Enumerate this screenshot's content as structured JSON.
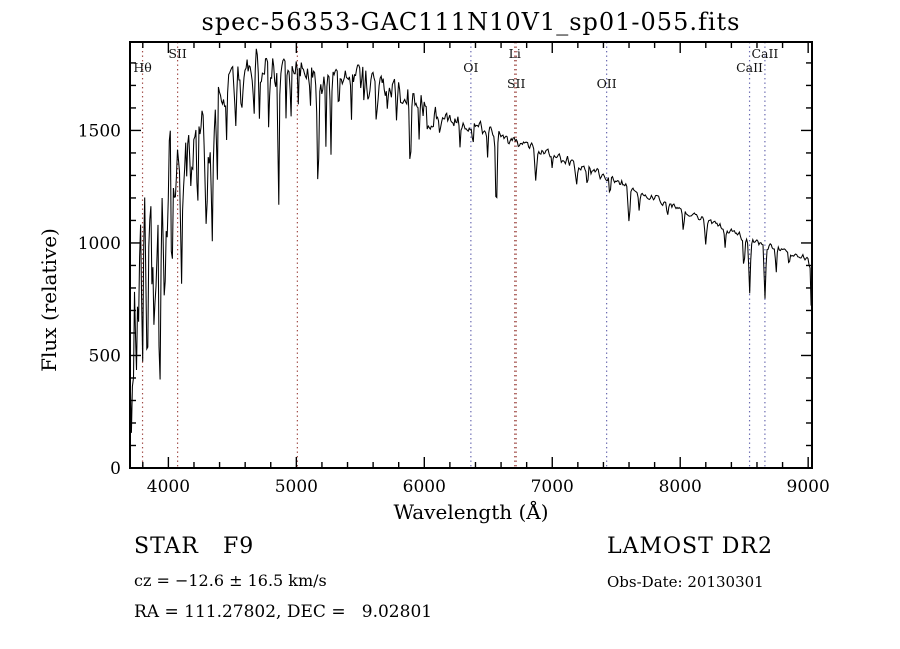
{
  "annotations": {
    "star_class": "STAR   F9",
    "cz": "cz = −12.6 ± 16.5 km/s",
    "radec": "RA = 111.27802, DEC =   9.02801",
    "survey": "LAMOST DR2",
    "obs_date": "Obs-Date: 20130301"
  },
  "chart_data": {
    "type": "line",
    "title": "spec-56353-GAC111N10V1_sp01-055.fits",
    "xlabel": "Wavelength (Å)",
    "ylabel": "Flux (relative)",
    "xlim": [
      3700,
      9030
    ],
    "ylim": [
      0,
      1893
    ],
    "x_ticks": [
      4000,
      5000,
      6000,
      7000,
      8000,
      9000
    ],
    "y_ticks": [
      0,
      500,
      1000,
      1500
    ],
    "x_minor_step": 200,
    "y_minor_step": 100,
    "grid": false,
    "background": "#ffffff",
    "line_color": "#000000",
    "marker_colors": {
      "red": "#a04a45",
      "blue": "#6868b0"
    },
    "line_markers": [
      {
        "label": "Hθ",
        "x": 3798,
        "color": "red",
        "row": 1
      },
      {
        "label": "SII",
        "x": 4072,
        "color": "red",
        "row": 0
      },
      {
        "label": "",
        "x": 5008,
        "color": "red",
        "row": 0
      },
      {
        "label": "OI",
        "x": 6364,
        "color": "blue",
        "row": 1
      },
      {
        "label": "Li",
        "x": 6707,
        "color": "red",
        "row": 0
      },
      {
        "label": "SII",
        "x": 6718,
        "color": "red",
        "row": 2
      },
      {
        "label": "OII",
        "x": 7425,
        "color": "blue",
        "row": 2
      },
      {
        "label": "CaII",
        "x": 8542,
        "color": "blue",
        "row": 1
      },
      {
        "label": "CaII",
        "x": 8662,
        "color": "blue",
        "row": 0
      }
    ],
    "spectrum": {
      "step": 8,
      "noise_seed": 20130301,
      "base_noise": 10,
      "continuum": [
        [
          3700,
          250
        ],
        [
          3715,
          750
        ],
        [
          3730,
          1000
        ],
        [
          3760,
          950
        ],
        [
          3800,
          900
        ],
        [
          3850,
          1000
        ],
        [
          3900,
          1060
        ],
        [
          3950,
          1100
        ],
        [
          4000,
          1230
        ],
        [
          4060,
          1300
        ],
        [
          4120,
          1330
        ],
        [
          4180,
          1420
        ],
        [
          4240,
          1470
        ],
        [
          4300,
          1450
        ],
        [
          4360,
          1540
        ],
        [
          4420,
          1620
        ],
        [
          4480,
          1680
        ],
        [
          4540,
          1710
        ],
        [
          4600,
          1740
        ],
        [
          4660,
          1780
        ],
        [
          4720,
          1790
        ],
        [
          4780,
          1780
        ],
        [
          4840,
          1770
        ],
        [
          4900,
          1790
        ],
        [
          4960,
          1790
        ],
        [
          5020,
          1780
        ],
        [
          5080,
          1760
        ],
        [
          5140,
          1740
        ],
        [
          5200,
          1730
        ],
        [
          5260,
          1730
        ],
        [
          5320,
          1730
        ],
        [
          5380,
          1740
        ],
        [
          5440,
          1730
        ],
        [
          5500,
          1720
        ],
        [
          5560,
          1710
        ],
        [
          5620,
          1700
        ],
        [
          5680,
          1690
        ],
        [
          5740,
          1690
        ],
        [
          5800,
          1680
        ],
        [
          5860,
          1660
        ],
        [
          5920,
          1650
        ],
        [
          5980,
          1620
        ],
        [
          6040,
          1570
        ],
        [
          6100,
          1560
        ],
        [
          6160,
          1560
        ],
        [
          6220,
          1550
        ],
        [
          6280,
          1540
        ],
        [
          6340,
          1530
        ],
        [
          6400,
          1520
        ],
        [
          6460,
          1505
        ],
        [
          6520,
          1495
        ],
        [
          6580,
          1480
        ],
        [
          6640,
          1465
        ],
        [
          6700,
          1455
        ],
        [
          6760,
          1440
        ],
        [
          6820,
          1430
        ],
        [
          6880,
          1415
        ],
        [
          6940,
          1405
        ],
        [
          7000,
          1390
        ],
        [
          7060,
          1375
        ],
        [
          7120,
          1365
        ],
        [
          7180,
          1350
        ],
        [
          7240,
          1335
        ],
        [
          7300,
          1320
        ],
        [
          7360,
          1305
        ],
        [
          7420,
          1295
        ],
        [
          7480,
          1280
        ],
        [
          7540,
          1265
        ],
        [
          7600,
          1250
        ],
        [
          7660,
          1235
        ],
        [
          7720,
          1220
        ],
        [
          7780,
          1205
        ],
        [
          7840,
          1190
        ],
        [
          7900,
          1175
        ],
        [
          7960,
          1160
        ],
        [
          8020,
          1145
        ],
        [
          8080,
          1125
        ],
        [
          8140,
          1110
        ],
        [
          8200,
          1100
        ],
        [
          8260,
          1085
        ],
        [
          8320,
          1070
        ],
        [
          8380,
          1055
        ],
        [
          8440,
          1040
        ],
        [
          8500,
          1025
        ],
        [
          8560,
          1010
        ],
        [
          8620,
          1000
        ],
        [
          8680,
          985
        ],
        [
          8740,
          975
        ],
        [
          8800,
          965
        ],
        [
          8860,
          955
        ],
        [
          8920,
          945
        ],
        [
          8960,
          935
        ],
        [
          9000,
          930
        ],
        [
          9016,
          890
        ],
        [
          9030,
          560
        ]
      ],
      "absorption_lines": [
        [
          3712,
          420,
          5
        ],
        [
          3727,
          300,
          4
        ],
        [
          3750,
          380,
          5
        ],
        [
          3770,
          350,
          4
        ],
        [
          3798,
          460,
          5
        ],
        [
          3835,
          430,
          5
        ],
        [
          3870,
          250,
          4
        ],
        [
          3889,
          420,
          5
        ],
        [
          3933,
          640,
          6
        ],
        [
          3969,
          580,
          6
        ],
        [
          4026,
          260,
          5
        ],
        [
          4101,
          540,
          6
        ],
        [
          4144,
          220,
          4
        ],
        [
          4173,
          180,
          4
        ],
        [
          4227,
          240,
          4
        ],
        [
          4300,
          380,
          8
        ],
        [
          4340,
          580,
          6
        ],
        [
          4383,
          300,
          4
        ],
        [
          4455,
          200,
          4
        ],
        [
          4530,
          170,
          4
        ],
        [
          4570,
          150,
          4
        ],
        [
          4668,
          190,
          4
        ],
        [
          4710,
          210,
          4
        ],
        [
          4785,
          260,
          4
        ],
        [
          4861,
          590,
          6
        ],
        [
          4920,
          240,
          4
        ],
        [
          4957,
          160,
          4
        ],
        [
          5015,
          210,
          4
        ],
        [
          5110,
          190,
          4
        ],
        [
          5170,
          460,
          7
        ],
        [
          5230,
          270,
          4
        ],
        [
          5270,
          340,
          5
        ],
        [
          5330,
          210,
          4
        ],
        [
          5430,
          230,
          4
        ],
        [
          5530,
          180,
          4
        ],
        [
          5625,
          140,
          4
        ],
        [
          5711,
          130,
          4
        ],
        [
          5780,
          150,
          4
        ],
        [
          5890,
          310,
          6
        ],
        [
          5960,
          170,
          4
        ],
        [
          6025,
          140,
          4
        ],
        [
          6122,
          100,
          4
        ],
        [
          6280,
          110,
          4
        ],
        [
          6380,
          80,
          4
        ],
        [
          6495,
          95,
          4
        ],
        [
          6563,
          330,
          6
        ],
        [
          6870,
          140,
          7
        ],
        [
          7000,
          70,
          5
        ],
        [
          7190,
          90,
          7
        ],
        [
          7275,
          75,
          5
        ],
        [
          7450,
          65,
          5
        ],
        [
          7600,
          140,
          8
        ],
        [
          7680,
          80,
          5
        ],
        [
          7900,
          70,
          5
        ],
        [
          8025,
          80,
          5
        ],
        [
          8200,
          110,
          6
        ],
        [
          8350,
          80,
          5
        ],
        [
          8498,
          150,
          5
        ],
        [
          8542,
          245,
          6
        ],
        [
          8662,
          235,
          6
        ],
        [
          8750,
          90,
          5
        ],
        [
          8850,
          70,
          5
        ]
      ],
      "noise_regions": [
        [
          3700,
          4050,
          280
        ],
        [
          4050,
          4400,
          150
        ],
        [
          4400,
          5000,
          85
        ],
        [
          5000,
          5600,
          70
        ],
        [
          5600,
          6100,
          60
        ],
        [
          6100,
          6700,
          32
        ],
        [
          6700,
          7600,
          20
        ],
        [
          7600,
          9035,
          16
        ]
      ]
    }
  }
}
